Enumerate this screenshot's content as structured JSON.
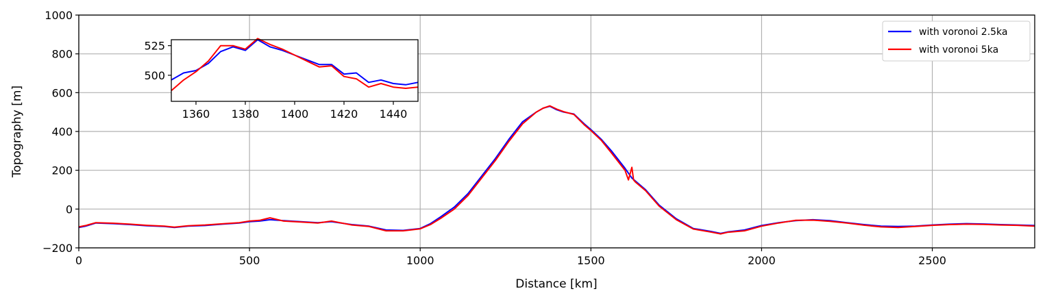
{
  "chart_data": {
    "type": "line",
    "xlabel": "Distance [km]",
    "ylabel": "Topography [m]",
    "xlim": [
      0,
      2800
    ],
    "ylim": [
      -200,
      1000
    ],
    "xticks": [
      0,
      500,
      1000,
      1500,
      2000,
      2500
    ],
    "yticks": [
      -200,
      0,
      200,
      400,
      600,
      800,
      1000
    ],
    "grid": true,
    "legend_position": "top-right",
    "series": [
      {
        "name": "with voronoi 2.5ka",
        "color": "#0000ff",
        "x": [
          0,
          20,
          50,
          100,
          150,
          200,
          250,
          280,
          320,
          370,
          420,
          470,
          500,
          530,
          560,
          600,
          650,
          700,
          740,
          800,
          850,
          900,
          950,
          1000,
          1030,
          1060,
          1100,
          1140,
          1180,
          1220,
          1260,
          1300,
          1340,
          1360,
          1380,
          1400,
          1420,
          1450,
          1480,
          1500,
          1530,
          1560,
          1600,
          1620,
          1660,
          1700,
          1750,
          1800,
          1850,
          1880,
          1900,
          1950,
          2000,
          2050,
          2100,
          2150,
          2200,
          2250,
          2300,
          2350,
          2400,
          2450,
          2500,
          2550,
          2600,
          2650,
          2700,
          2750,
          2800
        ],
        "y": [
          -95,
          -88,
          -72,
          -75,
          -80,
          -86,
          -90,
          -95,
          -88,
          -85,
          -78,
          -72,
          -65,
          -62,
          -55,
          -60,
          -65,
          -70,
          -65,
          -80,
          -88,
          -108,
          -110,
          -100,
          -75,
          -40,
          10,
          80,
          170,
          260,
          360,
          450,
          500,
          520,
          530,
          512,
          500,
          490,
          440,
          410,
          360,
          300,
          210,
          160,
          100,
          20,
          -50,
          -100,
          -115,
          -125,
          -118,
          -108,
          -85,
          -70,
          -60,
          -55,
          -60,
          -70,
          -80,
          -88,
          -90,
          -88,
          -82,
          -78,
          -75,
          -77,
          -80,
          -82,
          -85
        ]
      },
      {
        "name": "with voronoi 5ka",
        "color": "#ff0000",
        "x": [
          0,
          20,
          50,
          100,
          150,
          200,
          250,
          280,
          320,
          370,
          420,
          470,
          500,
          530,
          560,
          600,
          650,
          700,
          740,
          800,
          850,
          900,
          950,
          1000,
          1030,
          1060,
          1100,
          1140,
          1180,
          1220,
          1260,
          1300,
          1340,
          1360,
          1380,
          1400,
          1420,
          1450,
          1480,
          1500,
          1530,
          1560,
          1600,
          1610,
          1620,
          1625,
          1630,
          1660,
          1700,
          1750,
          1800,
          1850,
          1880,
          1900,
          1950,
          2000,
          2050,
          2100,
          2150,
          2200,
          2250,
          2300,
          2350,
          2400,
          2450,
          2500,
          2550,
          2600,
          2650,
          2700,
          2750,
          2800
        ],
        "y": [
          -92,
          -85,
          -70,
          -73,
          -78,
          -84,
          -88,
          -93,
          -86,
          -82,
          -76,
          -70,
          -62,
          -58,
          -45,
          -62,
          -67,
          -72,
          -62,
          -82,
          -90,
          -112,
          -112,
          -102,
          -80,
          -48,
          0,
          70,
          160,
          250,
          350,
          440,
          500,
          520,
          532,
          515,
          502,
          488,
          435,
          405,
          355,
          290,
          200,
          150,
          215,
          150,
          140,
          95,
          15,
          -55,
          -103,
          -118,
          -128,
          -120,
          -112,
          -88,
          -72,
          -58,
          -57,
          -63,
          -72,
          -83,
          -92,
          -95,
          -90,
          -84,
          -80,
          -78,
          -79,
          -82,
          -84,
          -88
        ]
      }
    ],
    "inset": {
      "xlim": [
        1350,
        1450
      ],
      "ylim": [
        478,
        530
      ],
      "xticks": [
        1360,
        1380,
        1400,
        1420,
        1440
      ],
      "yticks": [
        500,
        525
      ],
      "series": [
        {
          "name": "with voronoi 2.5ka",
          "color": "#0000ff",
          "x": [
            1350,
            1355,
            1360,
            1365,
            1370,
            1375,
            1380,
            1385,
            1390,
            1395,
            1400,
            1405,
            1410,
            1415,
            1420,
            1425,
            1430,
            1435,
            1440,
            1445,
            1450
          ],
          "y": [
            496,
            502,
            504,
            510,
            520,
            524,
            521,
            530,
            524,
            521,
            517,
            513,
            509,
            509,
            501,
            502,
            494,
            496,
            493,
            492,
            494
          ]
        },
        {
          "name": "with voronoi 5ka",
          "color": "#ff0000",
          "x": [
            1350,
            1355,
            1360,
            1365,
            1370,
            1375,
            1380,
            1385,
            1390,
            1395,
            1400,
            1405,
            1410,
            1415,
            1420,
            1425,
            1430,
            1435,
            1440,
            1445,
            1450
          ],
          "y": [
            487,
            496,
            503,
            512,
            525,
            525,
            522,
            531,
            526,
            522,
            517,
            512,
            507,
            508,
            499,
            497,
            490,
            493,
            490,
            489,
            490
          ]
        }
      ]
    }
  }
}
